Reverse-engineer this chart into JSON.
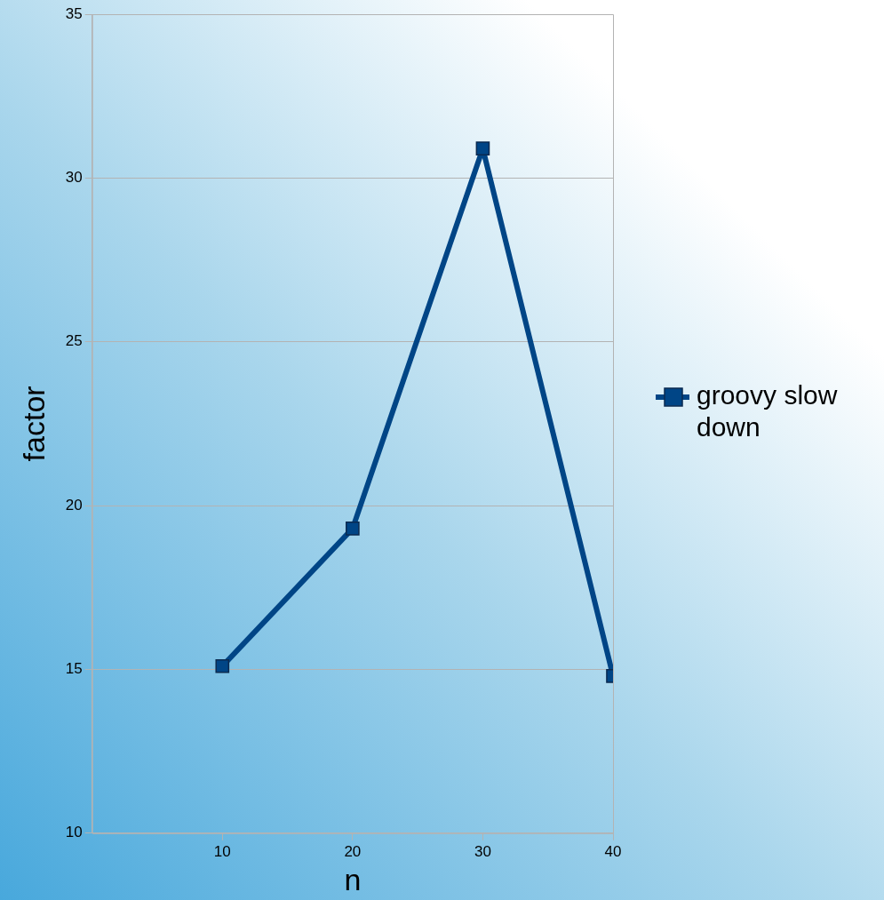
{
  "chart_data": {
    "type": "line",
    "xlabel": "n",
    "ylabel": "factor",
    "x": [
      10,
      20,
      30,
      40
    ],
    "series": [
      {
        "name": "groovy slow down",
        "color": "#004586",
        "values": [
          15.1,
          19.3,
          30.9,
          14.8
        ]
      }
    ],
    "xlim": [
      0,
      40
    ],
    "xticks": [
      10,
      20,
      30,
      40
    ],
    "ylim": [
      10,
      35
    ],
    "yticks": [
      10,
      15,
      20,
      25,
      30,
      35
    ],
    "grid": "y",
    "legend": "right",
    "marker": "square",
    "line_style": "solid"
  }
}
